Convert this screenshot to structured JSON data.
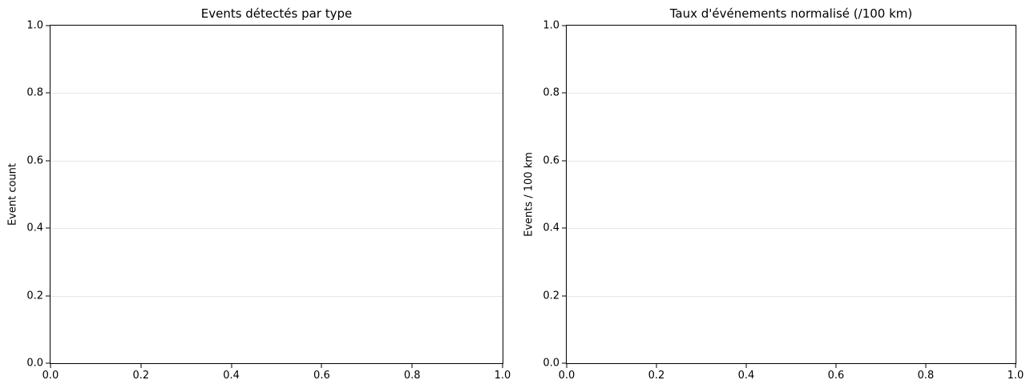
{
  "figure": {
    "background": "#ffffff",
    "text_color": "#000000",
    "charts": [
      {
        "title": "Events détectés par type",
        "xlabel": "",
        "ylabel": "Event count",
        "xlim": [
          0.0,
          1.0
        ],
        "ylim": [
          0.0,
          1.0
        ],
        "xticks": [
          "0.0",
          "0.2",
          "0.4",
          "0.6",
          "0.8",
          "1.0"
        ],
        "yticks": [
          "0.0",
          "0.2",
          "0.4",
          "0.6",
          "0.8",
          "1.0"
        ],
        "grid": "horizontal",
        "grid_color": "#e6e6e6",
        "spine_color": "#000000",
        "series": []
      },
      {
        "title": "Taux d'événements normalisé (/100 km)",
        "xlabel": "",
        "ylabel": "Events / 100 km",
        "xlim": [
          0.0,
          1.0
        ],
        "ylim": [
          0.0,
          1.0
        ],
        "xticks": [
          "0.0",
          "0.2",
          "0.4",
          "0.6",
          "0.8",
          "1.0"
        ],
        "yticks": [
          "0.0",
          "0.2",
          "0.4",
          "0.6",
          "0.8",
          "1.0"
        ],
        "grid": "horizontal",
        "grid_color": "#e6e6e6",
        "spine_color": "#000000",
        "series": []
      }
    ]
  },
  "chart_data": [
    {
      "type": "bar",
      "title": "Events détectés par type",
      "xlabel": "",
      "ylabel": "Event count",
      "categories": [],
      "values": [],
      "xlim": [
        0.0,
        1.0
      ],
      "ylim": [
        0.0,
        1.0
      ],
      "xticks": [
        0.0,
        0.2,
        0.4,
        0.6,
        0.8,
        1.0
      ],
      "yticks": [
        0.0,
        0.2,
        0.4,
        0.6,
        0.8,
        1.0
      ],
      "grid": "horizontal gridlines at y ticks",
      "legend": false
    },
    {
      "type": "bar",
      "title": "Taux d'événements normalisé (/100 km)",
      "xlabel": "",
      "ylabel": "Events / 100 km",
      "categories": [],
      "values": [],
      "xlim": [
        0.0,
        1.0
      ],
      "ylim": [
        0.0,
        1.0
      ],
      "xticks": [
        0.0,
        0.2,
        0.4,
        0.6,
        0.8,
        1.0
      ],
      "yticks": [
        0.0,
        0.2,
        0.4,
        0.6,
        0.8,
        1.0
      ],
      "grid": "horizontal gridlines at y ticks",
      "legend": false
    }
  ]
}
